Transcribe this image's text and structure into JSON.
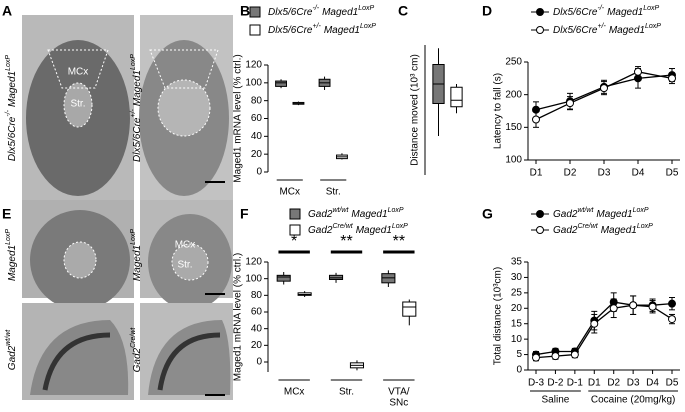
{
  "panel_letters": [
    "A",
    "B",
    "C",
    "D",
    "E",
    "F",
    "G"
  ],
  "images": {
    "A": {
      "region_labels": [
        "MCx",
        "Str."
      ],
      "genotype_labels": [
        [
          "Dlx5/6Cre",
          "-/-",
          "Maged1",
          "LoxP"
        ],
        [
          "Dlx5/6Cre",
          "+/-",
          "Maged1",
          "LoxP"
        ]
      ]
    },
    "E": {
      "region_labels": [
        "MCx",
        "Str."
      ],
      "genotype_labels": [
        [
          "Maged1",
          "LoxP"
        ],
        [
          "Maged1",
          "LoxP"
        ],
        [
          "Gad2",
          "wt/wt"
        ],
        [
          "Gad2",
          "Cre/wt"
        ]
      ]
    }
  },
  "chart_data": [
    {
      "type": "box",
      "ylabel": "Maged1 mRNA level (% ctrl.)",
      "ylim": [
        0,
        120
      ],
      "yticks": [
        0,
        20,
        40,
        60,
        80,
        100,
        120
      ],
      "categories": [
        "MCx",
        "Str."
      ],
      "series": [
        {
          "name": [
            "Dlx5/6Cre",
            "-/-",
            "Maged1",
            "LoxP"
          ],
          "color": "#777777",
          "values": [
            [
              94,
              96,
              100,
              102,
              104
            ],
            [
              92,
              96,
              100,
              104,
              107
            ]
          ]
        },
        {
          "name": [
            "Dlx5/6Cre",
            "+/-",
            "Maged1",
            "LoxP"
          ],
          "color": "#ffffff",
          "values": [
            [
              75,
              76,
              77,
              78,
              79
            ],
            [
              14,
              15,
              17,
              19,
              21
            ]
          ]
        }
      ]
    },
    {
      "type": "box",
      "ylabel": "Distance moved (10³ cm)",
      "ylim": [
        0,
        20
      ],
      "series": [
        {
          "color": "#777777",
          "values": [
            [
              6,
              11,
              14,
              17,
              19.5
            ]
          ]
        },
        {
          "color": "#ffffff",
          "values": [
            [
              9.5,
              10.5,
              11.5,
              13.5,
              14
            ]
          ]
        }
      ]
    },
    {
      "type": "line",
      "ylabel": "Latency to fall (s)",
      "ylim": [
        100,
        250
      ],
      "yticks": [
        100,
        150,
        200,
        250
      ],
      "categories": [
        "D1",
        "D2",
        "D3",
        "D4",
        "D5"
      ],
      "series": [
        {
          "name": [
            "Dlx5/6Cre",
            "-/-",
            "Maged1",
            "LoxP"
          ],
          "color": "#000000",
          "values": [
            177,
            190,
            212,
            225,
            230
          ],
          "errors": [
            12,
            12,
            10,
            15,
            10
          ]
        },
        {
          "name": [
            "Dlx5/6Cre",
            "+/-",
            "Maged1",
            "LoxP"
          ],
          "color": "#ffffff",
          "values": [
            162,
            187,
            210,
            235,
            225
          ],
          "errors": [
            12,
            10,
            10,
            8,
            8
          ]
        }
      ]
    },
    {
      "type": "box",
      "ylabel": "Maged1 mRNA level (% ctrl.)",
      "ylim": [
        -12,
        120
      ],
      "yticks": [
        0,
        20,
        40,
        60,
        80,
        100,
        120
      ],
      "categories": [
        "MCx",
        "Str.",
        [
          "VTA/",
          "SNc"
        ]
      ],
      "annotations": [
        "*",
        "**",
        "**"
      ],
      "series": [
        {
          "name": [
            "Gad2",
            "wt/wt",
            "Maged1",
            "LoxP"
          ],
          "color": "#777777",
          "values": [
            [
              93,
              97,
              102,
              104,
              108
            ],
            [
              95,
              99,
              101,
              104,
              107
            ],
            [
              90,
              95,
              101,
              106,
              110
            ]
          ]
        },
        {
          "name": [
            "Gad2",
            "Cre/wt",
            "Maged1",
            "LoxP"
          ],
          "color": "#ffffff",
          "values": [
            [
              78,
              80,
              81,
              83,
              85
            ],
            [
              -10,
              -7,
              -4,
              -1,
              2
            ],
            [
              44,
              55,
              66,
              72,
              75
            ]
          ]
        }
      ]
    },
    {
      "type": "line",
      "ylabel": "Total distance (10³cm)",
      "ylim": [
        0,
        35
      ],
      "yticks": [
        0,
        5,
        10,
        15,
        20,
        25,
        30,
        35
      ],
      "categories": [
        "D-3",
        "D-2",
        "D-1",
        "D1",
        "D2",
        "D3",
        "D4",
        "D5"
      ],
      "groups": [
        "Saline",
        "Cocaine (20mg/kg)"
      ],
      "series": [
        {
          "name": [
            "Gad2",
            "wt/wt",
            "Maged1",
            "LoxP"
          ],
          "color": "#000000",
          "values": [
            5,
            6,
            6,
            16,
            22,
            21,
            21,
            21.5
          ],
          "errors": [
            1,
            1,
            1,
            3,
            3,
            3,
            2,
            2
          ]
        },
        {
          "name": [
            "Gad2",
            "Cre/wt",
            "Maged1",
            "LoxP"
          ],
          "color": "#ffffff",
          "values": [
            4,
            4.5,
            5,
            15,
            20,
            21,
            20.5,
            16.5
          ],
          "errors": [
            1,
            1,
            1,
            3,
            3,
            3,
            2,
            1.5
          ]
        }
      ]
    }
  ]
}
